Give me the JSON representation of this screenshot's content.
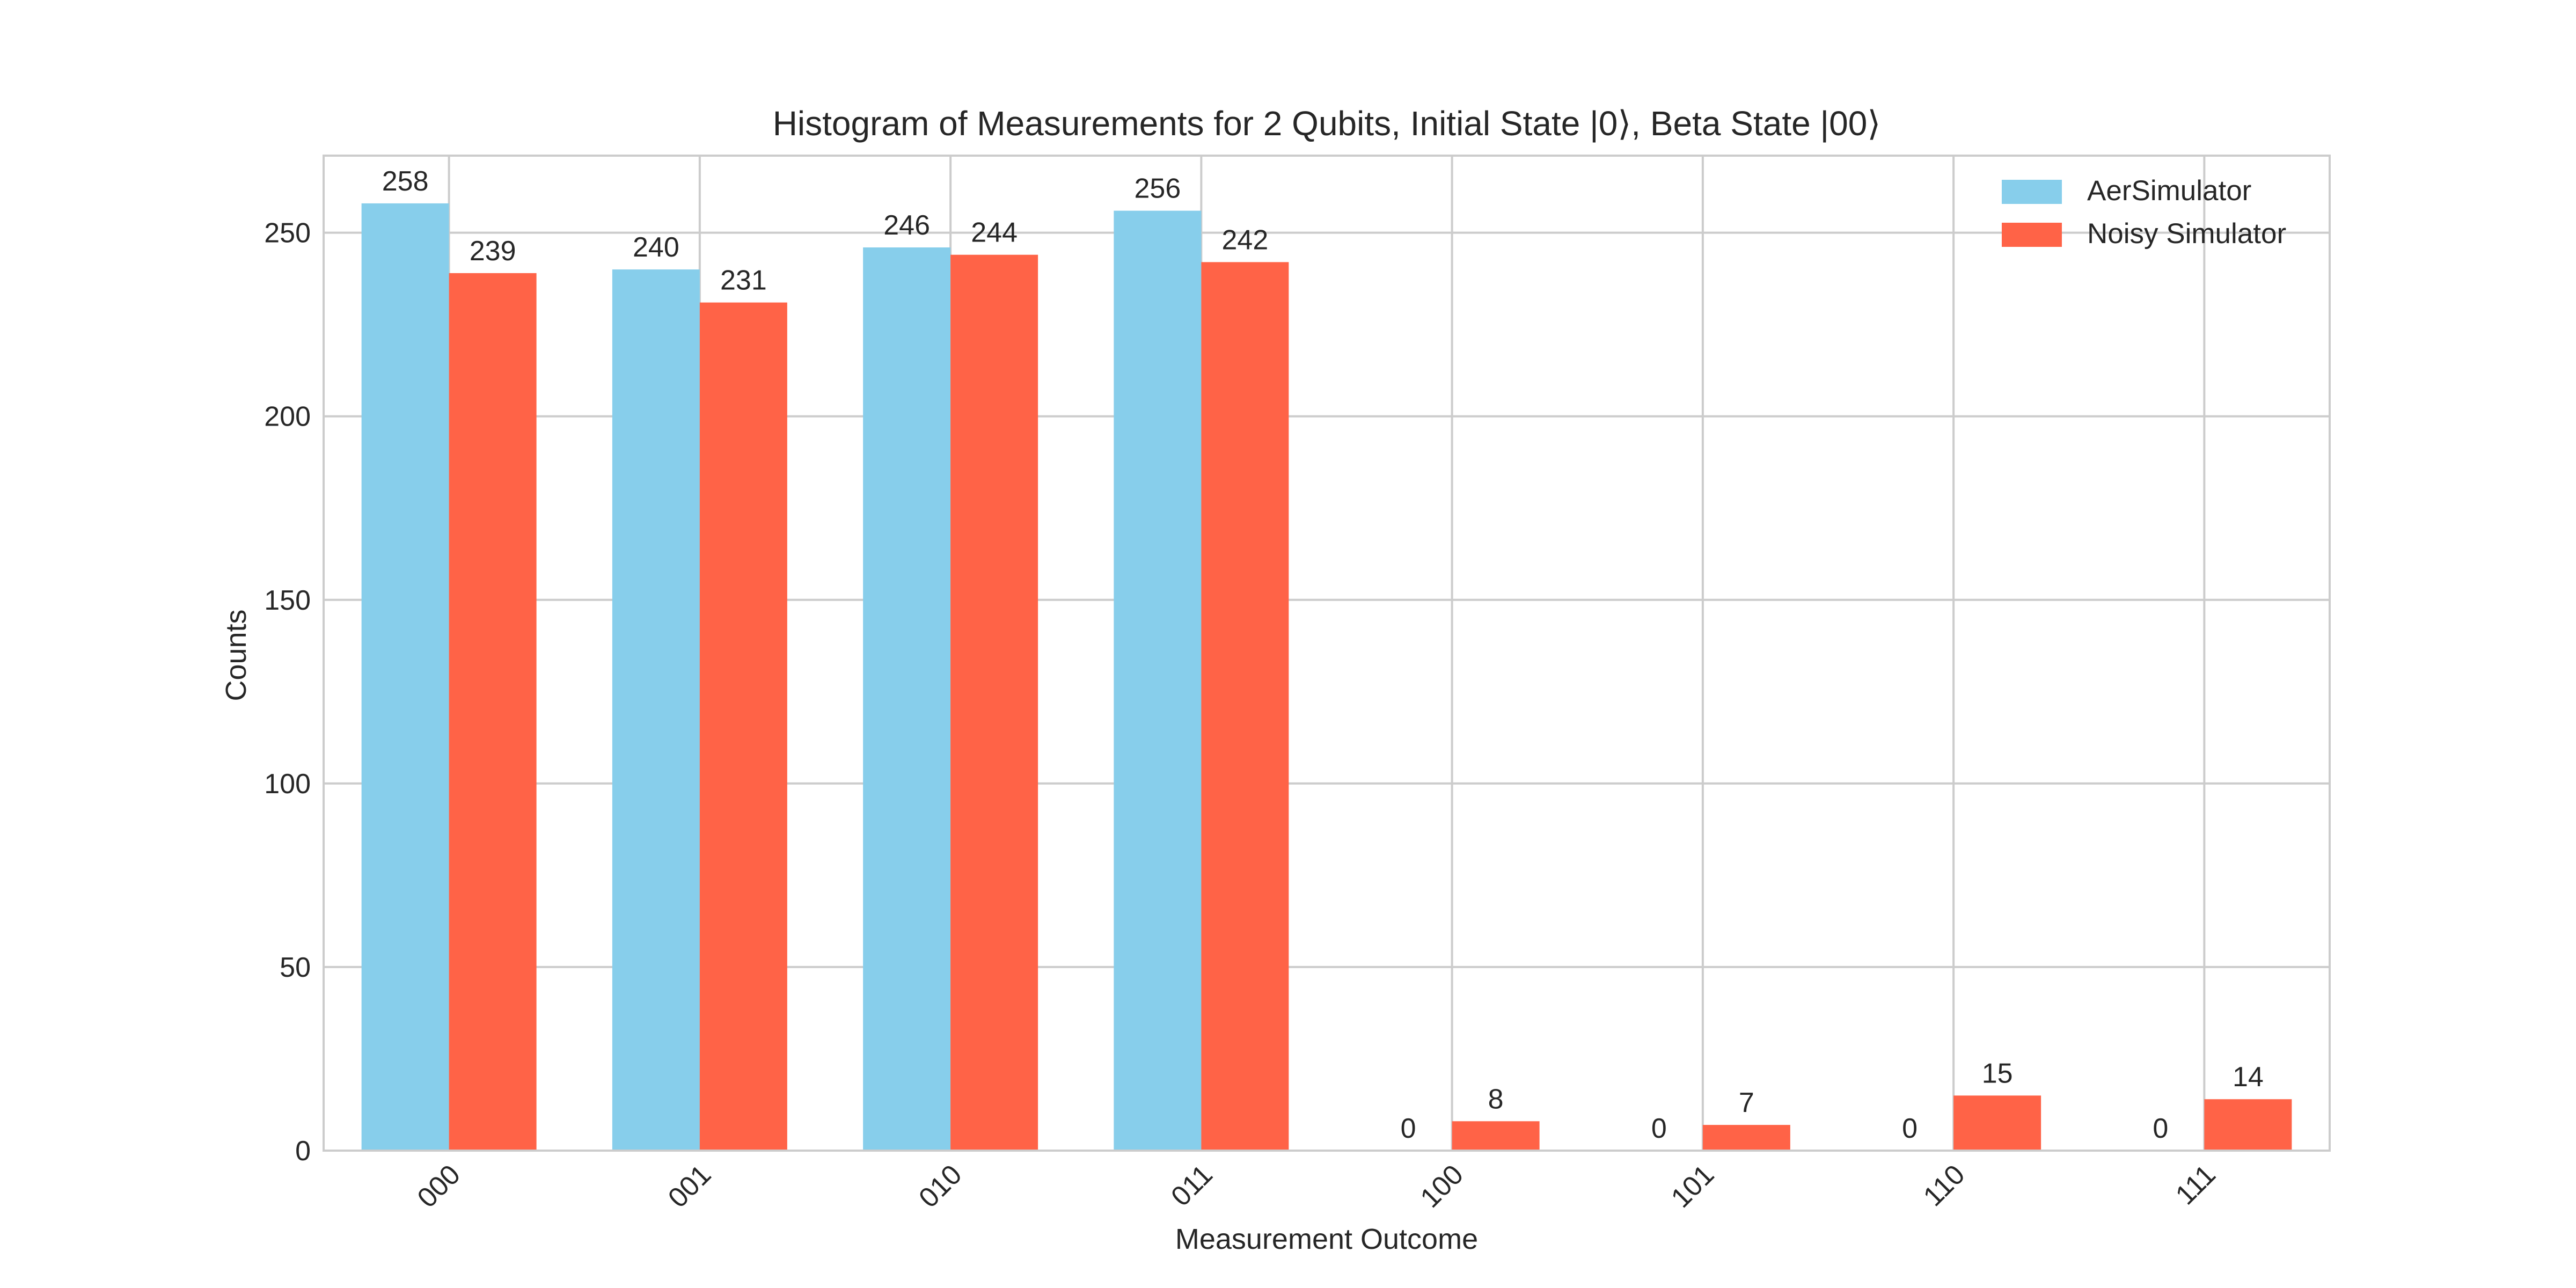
{
  "chart_data": {
    "type": "bar",
    "title": "Histogram of Measurements for 2 Qubits, Initial State |0⟩, Beta State |00⟩",
    "xlabel": "Measurement Outcome",
    "ylabel": "Counts",
    "categories": [
      "000",
      "001",
      "010",
      "011",
      "100",
      "101",
      "110",
      "111"
    ],
    "series": [
      {
        "name": "AerSimulator",
        "color": "#87CEEB",
        "values": [
          258,
          240,
          246,
          256,
          0,
          0,
          0,
          0
        ]
      },
      {
        "name": "Noisy Simulator",
        "color": "#FF6347",
        "values": [
          239,
          231,
          244,
          242,
          8,
          7,
          15,
          14
        ]
      }
    ],
    "ylim": [
      0,
      271
    ],
    "yticks": [
      0,
      50,
      100,
      150,
      200,
      250
    ],
    "grid": true,
    "legend_position": "top-right",
    "xtick_rotation": 45
  }
}
